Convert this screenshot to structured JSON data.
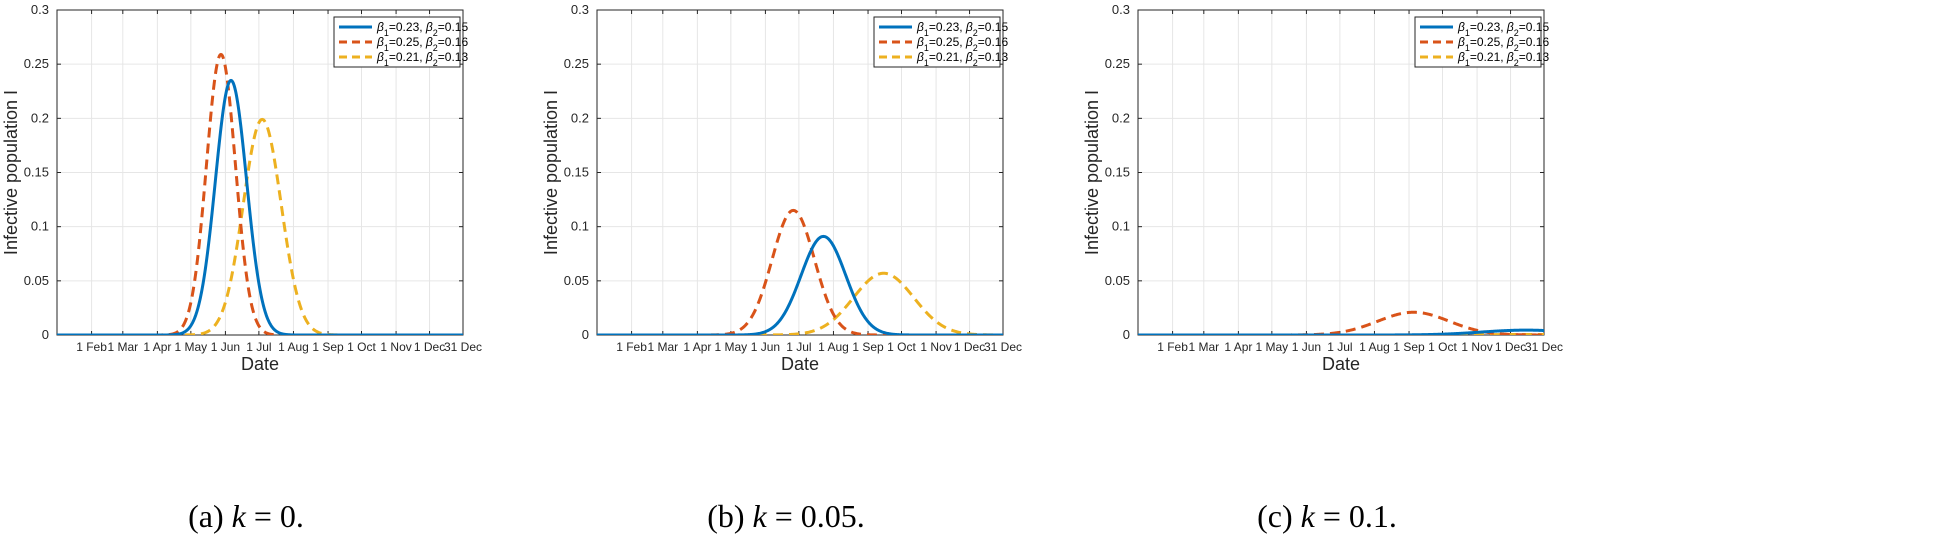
{
  "chart_data": [
    {
      "type": "line",
      "caption": {
        "label": "(a)",
        "k_symbol": "k",
        "equals": "= 0."
      },
      "xlabel": "Date",
      "ylabel": "Infective population I",
      "ylim": [
        0,
        0.3
      ],
      "yticks": [
        "0",
        "0.05",
        "0.1",
        "0.15",
        "0.2",
        "0.25",
        "0.3"
      ],
      "xlim": [
        "1 Jan",
        "31 Dec"
      ],
      "xticks": [
        "1 Feb",
        "1 Mar",
        "1 Apr",
        "1 May",
        "1 Jun",
        "1 Jul",
        "1 Aug",
        "1 Sep",
        "1 Oct",
        "1 Nov",
        "1 Dec",
        "31 Dec"
      ],
      "grid": true,
      "legend_position": "top-right",
      "series": [
        {
          "name_b1": "0.23",
          "name_b2": "0.15",
          "color": "#0072BD",
          "dash": "solid",
          "peak_date": "6 Jun",
          "peak": 0.235,
          "width_days": 14
        },
        {
          "name_b1": "0.25",
          "name_b2": "0.16",
          "color": "#D95319",
          "dash": "dashed",
          "peak_date": "28 May",
          "peak": 0.259,
          "width_days": 13
        },
        {
          "name_b1": "0.21",
          "name_b2": "0.13",
          "color": "#EDB120",
          "dash": "dashed",
          "peak_date": "4 Jul",
          "peak": 0.199,
          "width_days": 17
        }
      ]
    },
    {
      "type": "line",
      "caption": {
        "label": "(b)",
        "k_symbol": "k",
        "equals": "= 0.05."
      },
      "xlabel": "Date",
      "ylabel": "Infective population I",
      "ylim": [
        0,
        0.3
      ],
      "yticks": [
        "0",
        "0.05",
        "0.1",
        "0.15",
        "0.2",
        "0.25",
        "0.3"
      ],
      "xlim": [
        "1 Jan",
        "31 Dec"
      ],
      "xticks": [
        "1 Feb",
        "1 Mar",
        "1 Apr",
        "1 May",
        "1 Jun",
        "1 Jul",
        "1 Aug",
        "1 Sep",
        "1 Oct",
        "1 Nov",
        "1 Dec",
        "31 Dec"
      ],
      "grid": true,
      "legend_position": "top-right",
      "series": [
        {
          "name_b1": "0.23",
          "name_b2": "0.15",
          "color": "#0072BD",
          "dash": "solid",
          "peak_date": "23 Jul",
          "peak": 0.091,
          "width_days": 20
        },
        {
          "name_b1": "0.25",
          "name_b2": "0.16",
          "color": "#D95319",
          "dash": "dashed",
          "peak_date": "26 Jun",
          "peak": 0.115,
          "width_days": 19
        },
        {
          "name_b1": "0.21",
          "name_b2": "0.13",
          "color": "#EDB120",
          "dash": "dashed",
          "peak_date": "15 Sep",
          "peak": 0.057,
          "width_days": 27
        }
      ]
    },
    {
      "type": "line",
      "caption": {
        "label": "(c)",
        "k_symbol": "k",
        "equals": "= 0.1."
      },
      "xlabel": "Date",
      "ylabel": "Infective population I",
      "ylim": [
        0,
        0.3
      ],
      "yticks": [
        "0",
        "0.05",
        "0.1",
        "0.15",
        "0.2",
        "0.25",
        "0.3"
      ],
      "xlim": [
        "1 Jan",
        "31 Dec"
      ],
      "xticks": [
        "1 Feb",
        "1 Mar",
        "1 Apr",
        "1 May",
        "1 Jun",
        "1 Jul",
        "1 Aug",
        "1 Sep",
        "1 Oct",
        "1 Nov",
        "1 Dec",
        "31 Dec"
      ],
      "grid": true,
      "legend_position": "top-right",
      "series": [
        {
          "name_b1": "0.23",
          "name_b2": "0.15",
          "color": "#0072BD",
          "dash": "solid",
          "peak_date": "15 Dec",
          "peak": 0.0045,
          "width_days": 40
        },
        {
          "name_b1": "0.25",
          "name_b2": "0.16",
          "color": "#D95319",
          "dash": "dashed",
          "peak_date": "5 Sep",
          "peak": 0.021,
          "width_days": 32
        },
        {
          "name_b1": "0.21",
          "name_b2": "0.13",
          "color": "#EDB120",
          "dash": "dashed",
          "peak_date": "31 Dec",
          "peak": 0.0005,
          "width_days": 45
        }
      ]
    }
  ]
}
